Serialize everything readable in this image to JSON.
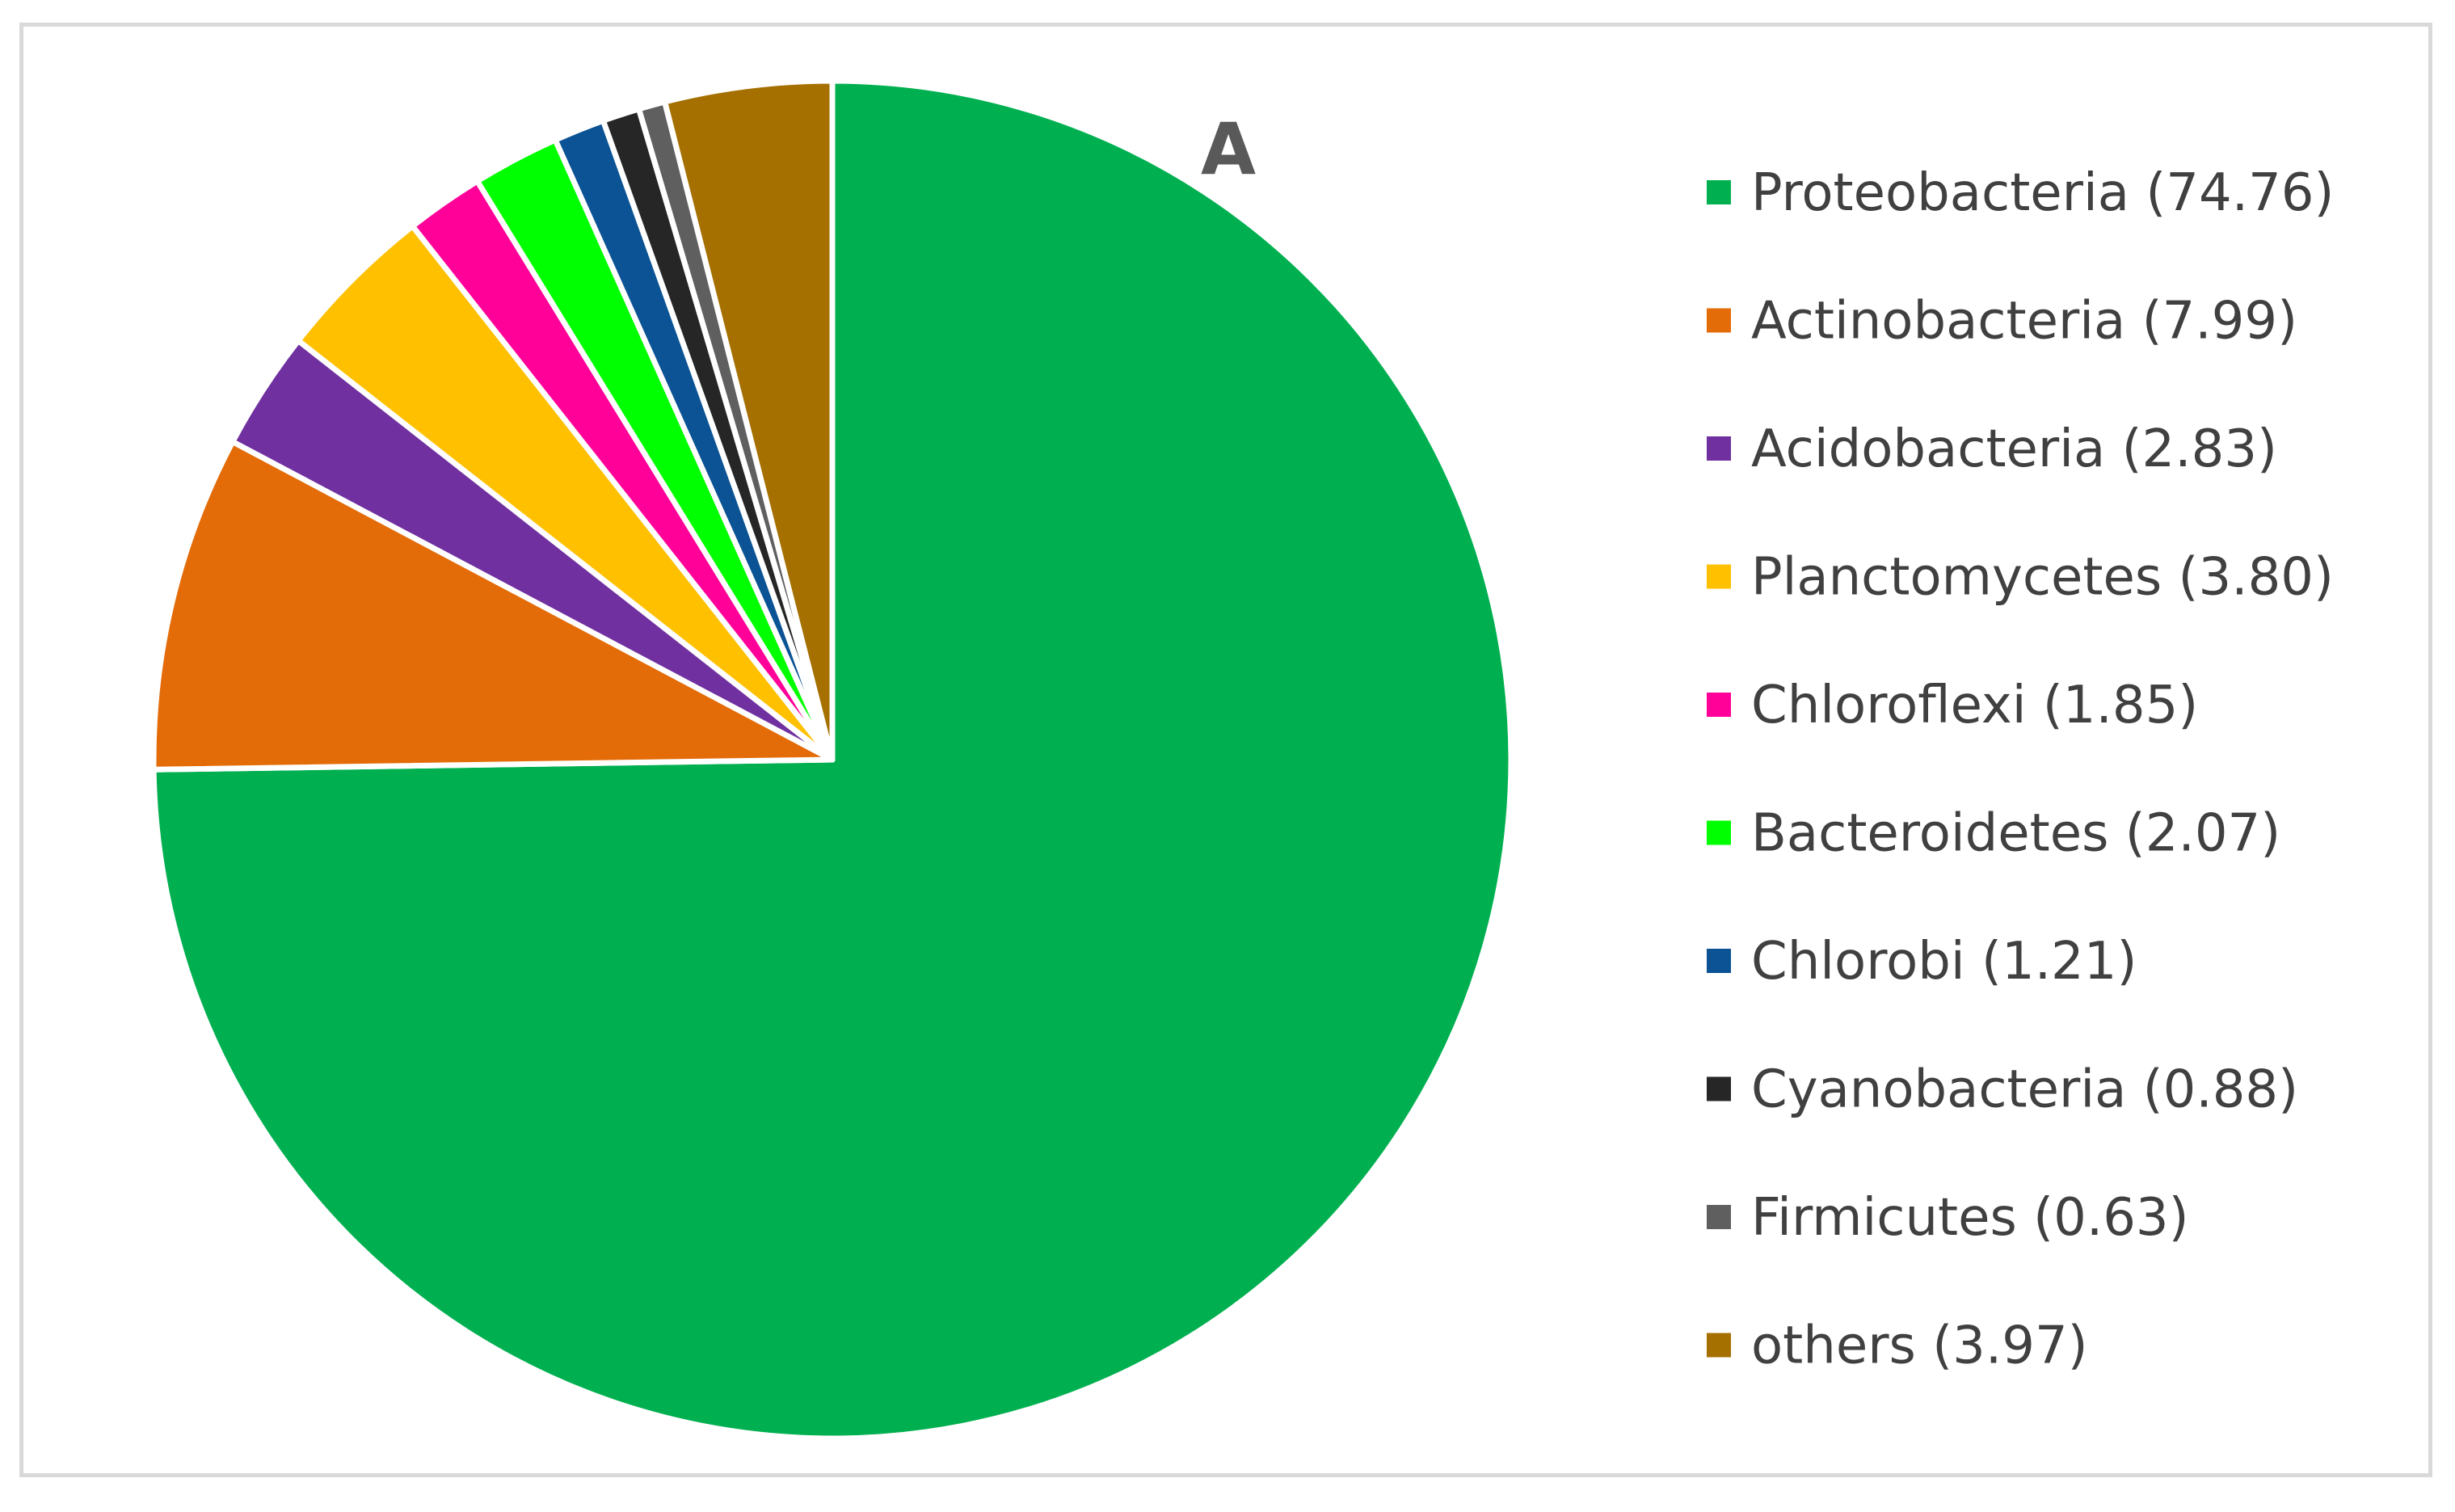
{
  "chart_data": {
    "type": "pie",
    "title": "",
    "panel_label": "A",
    "legend_position": "right",
    "start_angle_deg": 0,
    "direction": "clockwise",
    "slices": [
      {
        "name": "Proteobacteria",
        "value": 74.76,
        "legend_label": "Proteobacteria (74.76)",
        "color": "#00B050"
      },
      {
        "name": "Actinobacteria",
        "value": 7.99,
        "legend_label": "Actinobacteria (7.99)",
        "color": "#E36C09"
      },
      {
        "name": "Acidobacteria",
        "value": 2.83,
        "legend_label": "Acidobacteria (2.83)",
        "color": "#7030A0"
      },
      {
        "name": "Planctomycetes",
        "value": 3.8,
        "legend_label": "Planctomycetes (3.80)",
        "color": "#FFC000"
      },
      {
        "name": "Chloroflexi",
        "value": 1.85,
        "legend_label": "Chloroflexi (1.85)",
        "color": "#FF0099"
      },
      {
        "name": "Bacteroidetes",
        "value": 2.07,
        "legend_label": "Bacteroidetes (2.07)",
        "color": "#00FF00"
      },
      {
        "name": "Chlorobi",
        "value": 1.21,
        "legend_label": "Chlorobi (1.21)",
        "color": "#0B5394"
      },
      {
        "name": "Cyanobacteria",
        "value": 0.88,
        "legend_label": "Cyanobacteria (0.88)",
        "color": "#262626"
      },
      {
        "name": "Firmicutes",
        "value": 0.63,
        "legend_label": "Firmicutes (0.63)",
        "color": "#5F5F5F"
      },
      {
        "name": "others",
        "value": 3.97,
        "legend_label": "others (3.97)",
        "color": "#A57000"
      }
    ]
  }
}
